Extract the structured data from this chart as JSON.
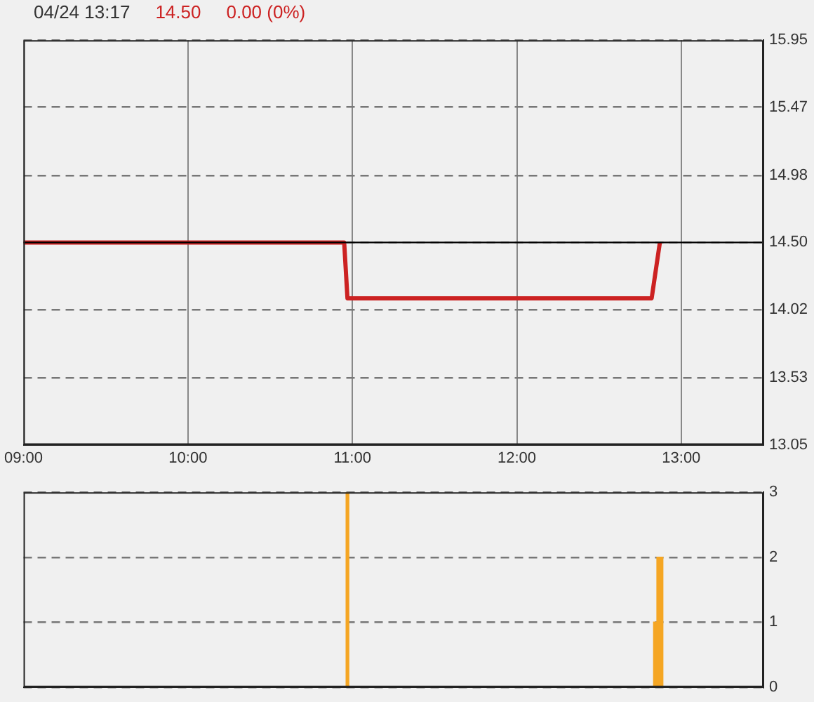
{
  "chart_data": [
    {
      "type": "line",
      "title": "04/24 13:17",
      "annotations": [
        "14.50",
        "0.00 (0%)"
      ],
      "x": [
        9,
        10.95,
        10.97,
        12.82,
        12.87
      ],
      "series": [
        {
          "color": "#cc2222",
          "values": [
            14.5,
            14.5,
            14.1,
            14.1,
            14.5
          ]
        }
      ],
      "xlim": [
        9,
        13.5
      ],
      "xticks": [
        {
          "value": 9,
          "label": "09:00"
        },
        {
          "value": 10,
          "label": "10:00"
        },
        {
          "value": 11,
          "label": "11:00"
        },
        {
          "value": 12,
          "label": "12:00"
        },
        {
          "value": 13,
          "label": "13:00"
        }
      ],
      "ylim": [
        13.05,
        15.95
      ],
      "yticks": [
        {
          "value": 13.05,
          "label": "13.05"
        },
        {
          "value": 13.53,
          "label": "13.53"
        },
        {
          "value": 14.02,
          "label": "14.02"
        },
        {
          "value": 14.5,
          "label": "14.50"
        },
        {
          "value": 14.98,
          "label": "14.98"
        },
        {
          "value": 15.47,
          "label": "15.47"
        },
        {
          "value": 15.95,
          "label": "15.95"
        }
      ],
      "ref_lines": [
        {
          "axis": "y",
          "value": 14.5,
          "color": "#000000"
        }
      ],
      "grid": true,
      "marker": "none"
    },
    {
      "type": "bar",
      "x": [
        10.97,
        12.84,
        12.86,
        12.88
      ],
      "series": [
        {
          "color": "#f5a623",
          "values": [
            3,
            1,
            2,
            2
          ]
        }
      ],
      "xlim": [
        9,
        13.5
      ],
      "ylim": [
        0,
        3
      ],
      "yticks": [
        0,
        1,
        2,
        3
      ],
      "grid": "y",
      "tick_labels": "y"
    }
  ]
}
